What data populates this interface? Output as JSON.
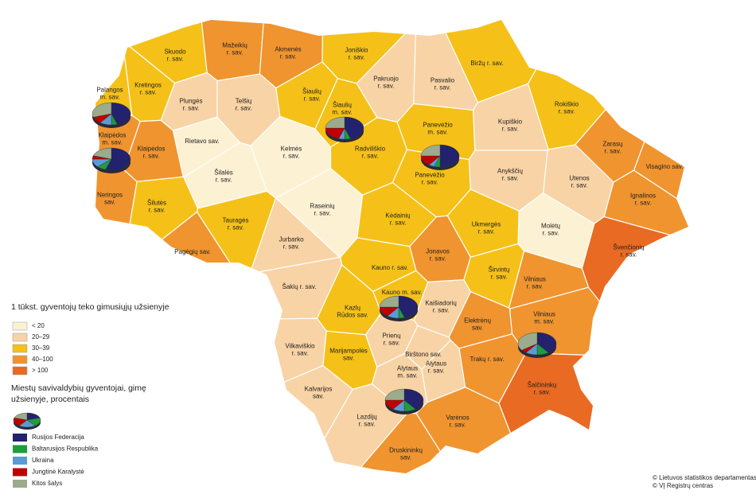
{
  "map": {
    "municipality_classes": [
      {
        "label": "< 20",
        "color": "#fdf1d3",
        "municipalities": [
          {
            "lines": [
              "Rietavo sav."
            ]
          },
          {
            "lines": [
              "Šilalės",
              "r. sav."
            ]
          },
          {
            "lines": [
              "Kelmės",
              "r. sav."
            ]
          },
          {
            "lines": [
              "Raseinių",
              "r. sav."
            ]
          },
          {
            "lines": [
              "Molėtų",
              "r. sav."
            ]
          }
        ]
      },
      {
        "label": "20–29",
        "color": "#f8d3a5",
        "municipalities": [
          {
            "lines": [
              "Plungės",
              "r. sav."
            ]
          },
          {
            "lines": [
              "Telšių",
              "r. sav."
            ]
          },
          {
            "lines": [
              "Pakruojo",
              "r. sav."
            ]
          },
          {
            "lines": [
              "Pasvalio",
              "r. sav."
            ]
          },
          {
            "lines": [
              "Kupiškio",
              "r. sav."
            ]
          },
          {
            "lines": [
              "Anykščių",
              "r. sav."
            ]
          },
          {
            "lines": [
              "Utenos",
              "r. sav."
            ]
          },
          {
            "lines": [
              "Jurbarko",
              "r. sav."
            ]
          },
          {
            "lines": [
              "Šakių r. sav."
            ]
          },
          {
            "lines": [
              "Vilkaviškio",
              "r. sav."
            ]
          },
          {
            "lines": [
              "Kalvarijos",
              "sav."
            ]
          },
          {
            "lines": [
              "Lazdijų",
              "r. sav."
            ]
          },
          {
            "lines": [
              "Prienų",
              "r. sav."
            ]
          },
          {
            "lines": [
              "Birštono sav."
            ]
          },
          {
            "lines": [
              "Alytaus",
              "r. sav."
            ]
          },
          {
            "lines": [
              "Kaišiadorių",
              "r. sav."
            ]
          },
          {
            "lines": [
              "Alytaus",
              "m. sav."
            ]
          }
        ]
      },
      {
        "label": "30–39",
        "color": "#f5c118",
        "municipalities": [
          {
            "lines": [
              "Skuodo",
              "r. sav."
            ]
          },
          {
            "lines": [
              "Kretingos",
              "r. sav."
            ]
          },
          {
            "lines": [
              "Joniškio",
              "r. sav."
            ]
          },
          {
            "lines": [
              "Šiaulių",
              "r. sav."
            ]
          },
          {
            "lines": [
              "Biržų r. sav."
            ]
          },
          {
            "lines": [
              "Rokiškio",
              "r. sav."
            ]
          },
          {
            "lines": [
              "Šilutės",
              "r. sav."
            ]
          },
          {
            "lines": [
              "Tauragės",
              "r. sav."
            ]
          },
          {
            "lines": [
              "Radviliškio",
              "r. sav."
            ]
          },
          {
            "lines": [
              "Panevėžio",
              "m. sav."
            ]
          },
          {
            "lines": [
              "Panevėžio",
              "r. sav."
            ]
          },
          {
            "lines": [
              "Kėdainių",
              "r. sav."
            ]
          },
          {
            "lines": [
              "Ukmergės",
              "r. sav."
            ]
          },
          {
            "lines": [
              "Širvintų",
              "r. sav."
            ]
          },
          {
            "lines": [
              "Kauno r. sav."
            ]
          },
          {
            "lines": [
              "Kauno m. sav."
            ]
          },
          {
            "lines": [
              "Kazlų",
              "Rūdos sav."
            ]
          },
          {
            "lines": [
              "Marijampolės",
              "sav."
            ]
          },
          {
            "lines": [
              "Šiaulių",
              "m. sav."
            ]
          },
          {
            "lines": [
              "Palangos",
              "m. sav."
            ]
          }
        ]
      },
      {
        "label": "40–100",
        "color": "#f0942f",
        "municipalities": [
          {
            "lines": [
              "Mažeikių",
              "r. sav."
            ]
          },
          {
            "lines": [
              "Akmenės",
              "r. sav."
            ]
          },
          {
            "lines": [
              "Klaipėdos",
              "m. sav."
            ]
          },
          {
            "lines": [
              "Klaipėdos",
              "r. sav."
            ]
          },
          {
            "lines": [
              "Neringos",
              "sav."
            ]
          },
          {
            "lines": [
              "Pagėgių sav."
            ]
          },
          {
            "lines": [
              "Zarasų",
              "r. sav."
            ]
          },
          {
            "lines": [
              "Visagino sav."
            ]
          },
          {
            "lines": [
              "Ignalinos",
              "r. sav."
            ]
          },
          {
            "lines": [
              "Jonavos",
              "r. sav."
            ]
          },
          {
            "lines": [
              "Vilniaus",
              "r. sav."
            ]
          },
          {
            "lines": [
              "Vilniaus",
              "m. sav."
            ]
          },
          {
            "lines": [
              "Elektrėnų",
              "sav."
            ]
          },
          {
            "lines": [
              "Trakų r. sav."
            ]
          },
          {
            "lines": [
              "Varėnos",
              "r. sav."
            ]
          },
          {
            "lines": [
              "Druskininkų",
              "sav."
            ]
          }
        ]
      },
      {
        "label": "> 100",
        "color": "#e96a22",
        "municipalities": [
          {
            "lines": [
              "Švenčionių",
              "r. sav."
            ]
          },
          {
            "lines": [
              "Šalčininkų",
              "r. sav."
            ]
          }
        ]
      }
    ]
  },
  "legend": {
    "title": "1 tūkst. gyventojų teko gimusiųjų užsienyje"
  },
  "pie_legend": {
    "title_lines": [
      "Miestų savivaldybių gyventojai, gimę",
      "užsienyje, procentais"
    ],
    "items": [
      {
        "label": "Rusijos Federacija",
        "color": "#22226e"
      },
      {
        "label": "Baltarusijos Respublika",
        "color": "#1f9c3c"
      },
      {
        "label": "Ukraina",
        "color": "#5b9bd5"
      },
      {
        "label": "Jungtinė Karalystė",
        "color": "#c00000"
      },
      {
        "label": "Kitos šalys",
        "color": "#9cab8c"
      }
    ]
  },
  "pies": [
    {
      "values": [
        45,
        5,
        10,
        10,
        30
      ]
    },
    {
      "values": [
        55,
        8,
        12,
        5,
        20
      ]
    },
    {
      "values": [
        45,
        5,
        5,
        20,
        25
      ]
    },
    {
      "values": [
        50,
        5,
        5,
        15,
        25
      ]
    },
    {
      "values": [
        45,
        5,
        10,
        15,
        25
      ]
    },
    {
      "values": [
        40,
        10,
        10,
        5,
        35
      ]
    },
    {
      "values": [
        40,
        10,
        10,
        15,
        25
      ]
    }
  ],
  "credits": [
    "© Lietuvos statistikos departamentas",
    "© VĮ Registrų centras"
  ]
}
